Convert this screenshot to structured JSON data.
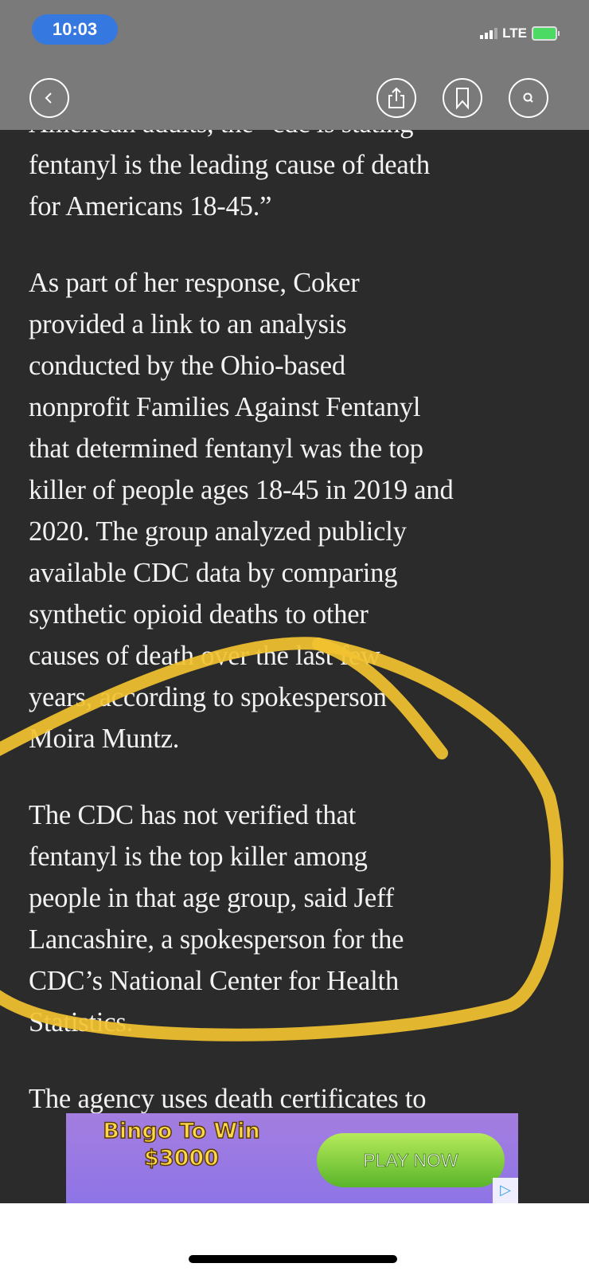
{
  "status_bar": {
    "time": "10:03",
    "network": "LTE",
    "battery_charging": true
  },
  "nav": {
    "back_icon": "chevron-left-icon",
    "share_icon": "share-icon",
    "bookmark_icon": "bookmark-icon",
    "search_icon": "search-icon"
  },
  "article": {
    "lines": [
      "American adults, the “cdc is stating",
      "fentanyl is the leading cause of death",
      "for Americans 18-45.”",
      "As part of her response, Coker",
      "provided a link to an analysis",
      "conducted by the Ohio-based",
      "nonprofit Families Against Fentanyl",
      "that determined fentanyl was the top",
      "killer of people ages 18-45 in 2019 and",
      "2020. The group analyzed publicly",
      "available CDC data by comparing",
      "synthetic opioid deaths to other",
      "causes of death over the last few",
      "years, according to spokesperson",
      "Moira Muntz.",
      "The CDC has not verified that",
      "fentanyl is the top killer among",
      "people in that age group, said Jeff",
      "Lancashire, a spokesperson for the",
      "CDC’s National Center for Health",
      "Statistics.",
      "The agency uses death certificates to"
    ]
  },
  "annotation": {
    "color": "#f2c230"
  },
  "ad": {
    "title_line1": "Bingo To Win",
    "title_line2": "$3000",
    "cta": "PLAY NOW",
    "info_icon": "ad-choices-icon"
  }
}
